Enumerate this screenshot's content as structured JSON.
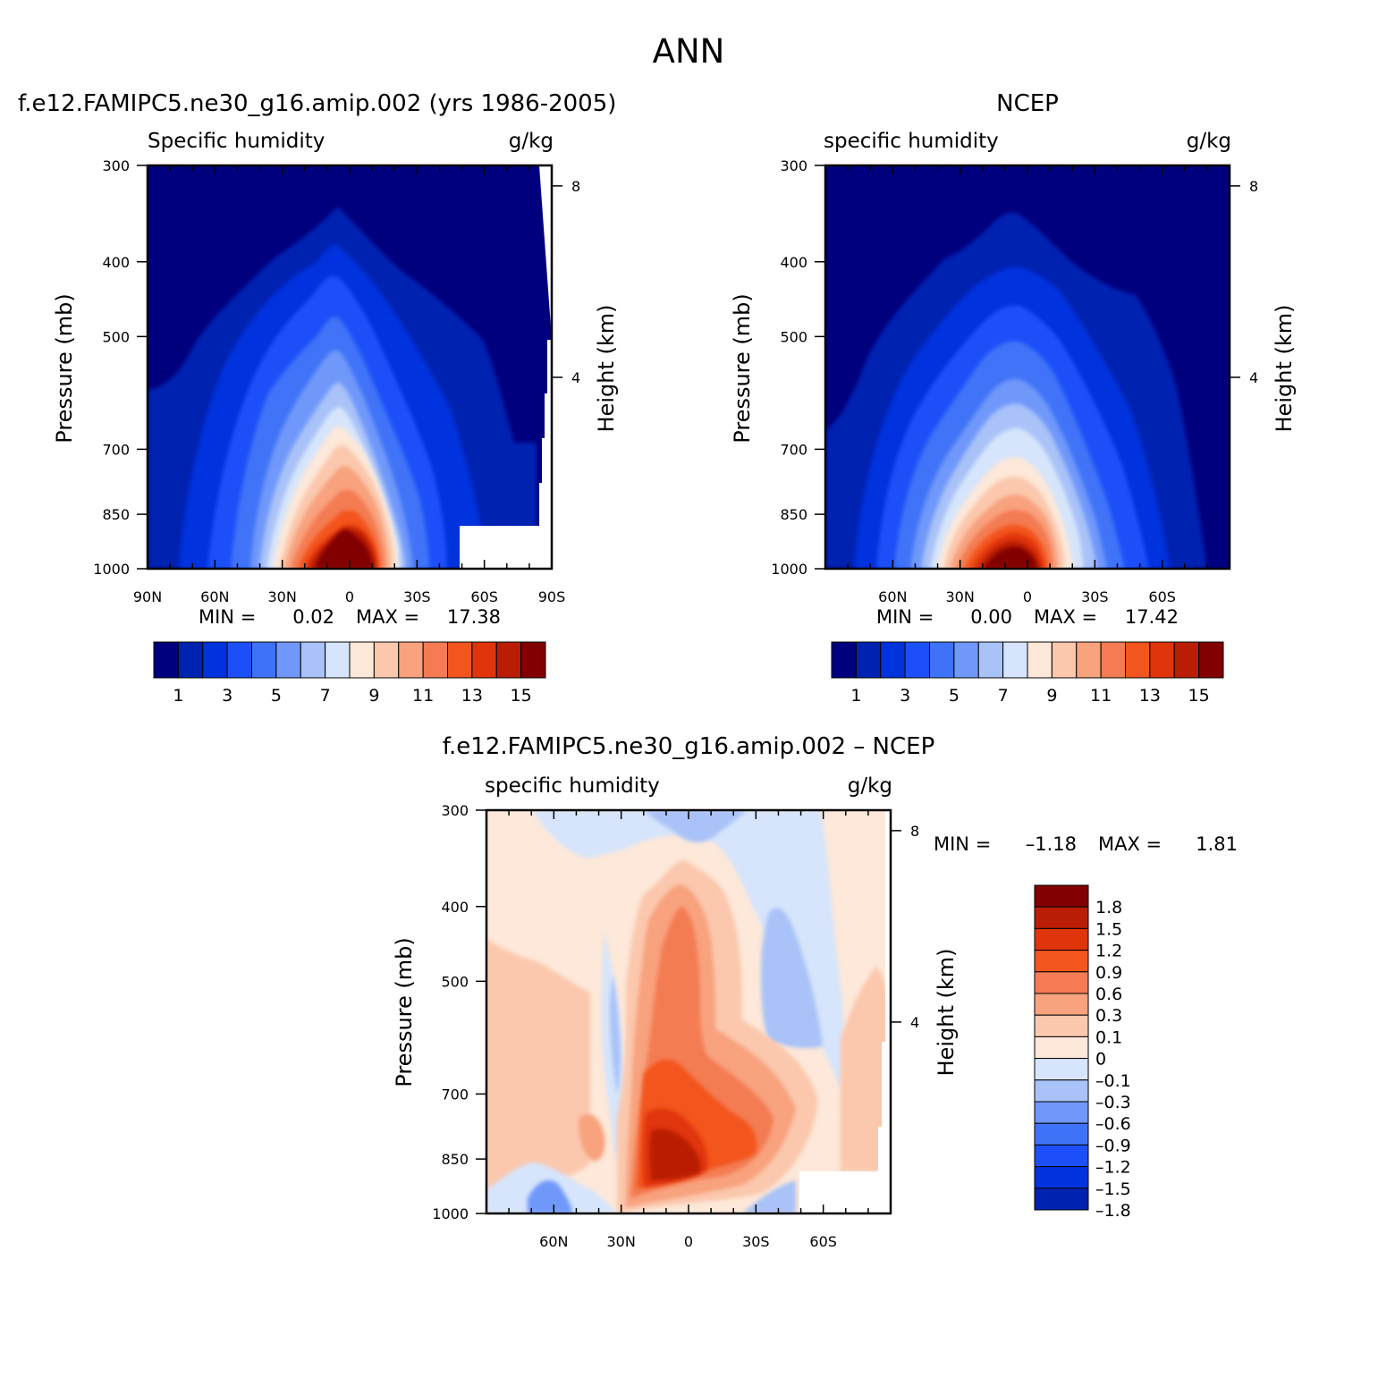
{
  "figure": {
    "title": "ANN",
    "units": "g/kg",
    "pressure_axis_label": "Pressure (mb)",
    "height_axis_label": "Height (km)"
  },
  "colors": {
    "humidity_levels": [
      "#00007e",
      "#0022b1",
      "#0033de",
      "#1c4ff8",
      "#3f73f7",
      "#6f98fa",
      "#a9c2f8",
      "#d6e5fb",
      "#fde8d9",
      "#fbc8ad",
      "#f8a27e",
      "#f47b53",
      "#f3551f",
      "#e0340a",
      "#b91e05",
      "#820002"
    ],
    "diff_levels": [
      "#0022b1",
      "#0033de",
      "#1c4ff8",
      "#3f73f7",
      "#6f98fa",
      "#a9c2f8",
      "#d6e5fb",
      "#fde8d9",
      "#fbc8ad",
      "#f8a27e",
      "#f47b53",
      "#f3551f",
      "#e0340a",
      "#b91e05",
      "#820002"
    ]
  },
  "chart_data": [
    {
      "type": "heatmap",
      "title": "f.e12.FAMIPC5.ne30_g16.amip.002 (yrs 1986-2005)",
      "left_label": "Specific humidity",
      "units": "g/kg",
      "x_ticks": [
        "90N",
        "60N",
        "30N",
        "0",
        "30S",
        "60S",
        "90S"
      ],
      "x_values": [
        90,
        60,
        30,
        0,
        -30,
        -60,
        -90
      ],
      "y_ticks": [
        "300",
        "400",
        "500",
        "700",
        "850",
        "1000"
      ],
      "y_values": [
        300,
        400,
        500,
        700,
        850,
        1000
      ],
      "height_ticks": [
        "8",
        "4"
      ],
      "height_values": [
        8,
        4
      ],
      "stats": {
        "min_label": "MIN =",
        "min": "0.02",
        "max_label": "MAX =",
        "max": "17.38"
      },
      "peak": {
        "lat": 5,
        "p": 1000,
        "value": 17.38
      },
      "colorbar_labels": [
        "1",
        "3",
        "5",
        "7",
        "9",
        "11",
        "13",
        "15"
      ]
    },
    {
      "type": "heatmap",
      "title": "NCEP",
      "left_label": "specific humidity",
      "units": "g/kg",
      "x_ticks": [
        "60N",
        "30N",
        "0",
        "30S",
        "60S"
      ],
      "x_values": [
        60,
        30,
        0,
        -30,
        -60
      ],
      "y_ticks": [
        "300",
        "400",
        "500",
        "700",
        "850",
        "1000"
      ],
      "y_values": [
        300,
        400,
        500,
        700,
        850,
        1000
      ],
      "height_ticks": [
        "8",
        "4"
      ],
      "height_values": [
        8,
        4
      ],
      "stats": {
        "min_label": "MIN =",
        "min": "0.00",
        "max_label": "MAX =",
        "max": "17.42"
      },
      "peak": {
        "lat": 5,
        "p": 1000,
        "value": 17.42
      },
      "colorbar_labels": [
        "1",
        "3",
        "5",
        "7",
        "9",
        "11",
        "13",
        "15"
      ]
    },
    {
      "type": "heatmap",
      "title": "f.e12.FAMIPC5.ne30_g16.amip.002 – NCEP",
      "left_label": "specific humidity",
      "units": "g/kg",
      "x_ticks": [
        "60N",
        "30N",
        "0",
        "30S",
        "60S"
      ],
      "x_values": [
        60,
        30,
        0,
        -30,
        -60
      ],
      "y_ticks": [
        "300",
        "400",
        "500",
        "700",
        "850",
        "1000"
      ],
      "y_values": [
        300,
        400,
        500,
        700,
        850,
        1000
      ],
      "height_ticks": [
        "8",
        "4"
      ],
      "height_values": [
        8,
        4
      ],
      "stats": {
        "min_label": "MIN =",
        "min": "–1.18",
        "max_label": "MAX =",
        "max": "1.81"
      },
      "colorbar_labels": [
        "1.8",
        "1.5",
        "1.2",
        "0.9",
        "0.6",
        "0.3",
        "0.1",
        "0",
        "–0.1",
        "–0.3",
        "–0.6",
        "–0.9",
        "–1.2",
        "–1.5",
        "–1.8"
      ]
    }
  ]
}
